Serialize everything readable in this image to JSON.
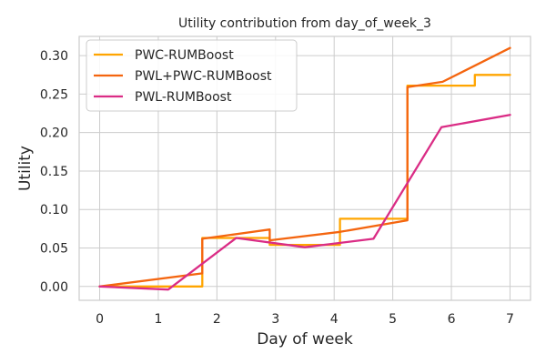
{
  "chart_data": {
    "type": "line",
    "title": "Utility contribution from day_of_week_3",
    "xlabel": "Day of week",
    "ylabel": "Utility",
    "xlim": [
      -0.35,
      7.35
    ],
    "ylim": [
      -0.018,
      0.325
    ],
    "xticks": [
      0,
      1,
      2,
      3,
      4,
      5,
      6,
      7
    ],
    "xtick_labels": [
      "0",
      "1",
      "2",
      "3",
      "4",
      "5",
      "6",
      "7"
    ],
    "yticks": [
      0.0,
      0.05,
      0.1,
      0.15,
      0.2,
      0.25,
      0.3
    ],
    "ytick_labels": [
      "0.00",
      "0.05",
      "0.10",
      "0.15",
      "0.20",
      "0.25",
      "0.30"
    ],
    "grid": true,
    "legend_position": "top-left",
    "series": [
      {
        "name": "PWC-RUMBoost",
        "color": "#FFA500",
        "x": [
          0,
          1.75,
          1.75,
          2.9,
          2.9,
          4.1,
          4.1,
          5.25,
          5.25,
          6.4,
          6.4,
          7
        ],
        "y": [
          0.0,
          0.0,
          0.063,
          0.063,
          0.054,
          0.054,
          0.088,
          0.088,
          0.261,
          0.261,
          0.275,
          0.275
        ]
      },
      {
        "name": "PWL+PWC-RUMBoost",
        "color": "#F4650F",
        "x": [
          0,
          1.75,
          1.75,
          2.9,
          2.9,
          4.1,
          5.25,
          5.25,
          5.85,
          7
        ],
        "y": [
          0.0,
          0.017,
          0.062,
          0.074,
          0.06,
          0.071,
          0.086,
          0.259,
          0.266,
          0.31
        ]
      },
      {
        "name": "PWL-RUMBoost",
        "color": "#DA2C85",
        "x": [
          0,
          1.17,
          2.33,
          3.5,
          4.67,
          5.83,
          7
        ],
        "y": [
          0.0,
          -0.004,
          0.063,
          0.051,
          0.062,
          0.207,
          0.223
        ]
      }
    ]
  }
}
